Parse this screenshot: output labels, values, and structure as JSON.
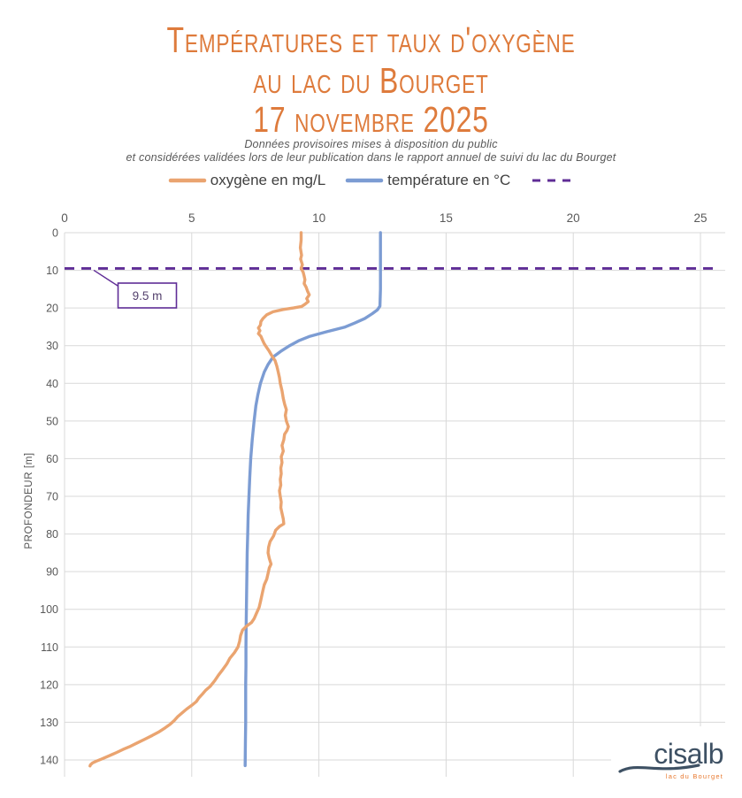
{
  "header": {
    "title_line1": "Températures et taux d'oxygène",
    "title_line2": "au lac du Bourget",
    "title_line3": "17 novembre 2025",
    "subtitle_line1": "Données provisoires mises à disposition du public",
    "subtitle_line2": "et considérées validées lors de leur publication dans le rapport annuel de suivi du lac du Bourget",
    "title_color": "#DE7B3C"
  },
  "legend": {
    "items": [
      {
        "label": "oxygène en mg/L",
        "color": "#EAA470",
        "dashed": false
      },
      {
        "label": "température en °C",
        "color": "#7C9CD3",
        "dashed": false
      },
      {
        "label": "",
        "color": "#5F2D96",
        "dashed": true
      }
    ]
  },
  "logo": {
    "name": "cisalb",
    "tagline": "lac du Bourget",
    "name_color": "#3E5164",
    "tagline_color": "#E8792F"
  },
  "chart_data": {
    "type": "line",
    "title": "Températures et taux d'oxygène au lac du Bourget — 17 novembre 2025",
    "orientation": "vertical-depth-profile",
    "grid": true,
    "grid_color": "#D9D9D9",
    "tick_label_color": "#595959",
    "x_axis": {
      "position": "top",
      "min": 0,
      "max": 25,
      "ticks": [
        0,
        5,
        10,
        15,
        20,
        25
      ]
    },
    "y_axis": {
      "label": "PROFONDEUR [m]",
      "min": 0,
      "max": 140,
      "ticks": [
        0,
        10,
        20,
        30,
        40,
        50,
        60,
        70,
        80,
        90,
        100,
        110,
        120,
        130,
        140
      ]
    },
    "annotation": {
      "label": "9.5 m",
      "depth": 9.5,
      "color": "#5F2D96",
      "text_color": "#54416D",
      "style": "horizontal-dashed-line",
      "line_end_value": 25.5
    },
    "series": [
      {
        "name": "température en °C",
        "color": "#7C9CD3",
        "points": [
          [
            0,
            12.42
          ],
          [
            5,
            12.42
          ],
          [
            10,
            12.42
          ],
          [
            15,
            12.42
          ],
          [
            19.5,
            12.4
          ],
          [
            20.5,
            12.3
          ],
          [
            21.5,
            12.1
          ],
          [
            22.8,
            11.8
          ],
          [
            24,
            11.4
          ],
          [
            25.1,
            11.0
          ],
          [
            26.3,
            10.3
          ],
          [
            27.5,
            9.65
          ],
          [
            28.7,
            9.2
          ],
          [
            30,
            8.85
          ],
          [
            31.5,
            8.5
          ],
          [
            33,
            8.2
          ],
          [
            35,
            8.0
          ],
          [
            37,
            7.85
          ],
          [
            40,
            7.7
          ],
          [
            43,
            7.6
          ],
          [
            46,
            7.52
          ],
          [
            50,
            7.45
          ],
          [
            55,
            7.38
          ],
          [
            60,
            7.32
          ],
          [
            65,
            7.28
          ],
          [
            70,
            7.25
          ],
          [
            75,
            7.22
          ],
          [
            80,
            7.2
          ],
          [
            85,
            7.18
          ],
          [
            90,
            7.17
          ],
          [
            95,
            7.16
          ],
          [
            100,
            7.15
          ],
          [
            105,
            7.14
          ],
          [
            110,
            7.13
          ],
          [
            115,
            7.13
          ],
          [
            120,
            7.12
          ],
          [
            125,
            7.12
          ],
          [
            130,
            7.12
          ],
          [
            135,
            7.11
          ],
          [
            141.5,
            7.1
          ]
        ]
      },
      {
        "name": "oxygène en mg/L",
        "color": "#EAA470",
        "points": [
          [
            0,
            9.3
          ],
          [
            2,
            9.3
          ],
          [
            4,
            9.27
          ],
          [
            6,
            9.32
          ],
          [
            7,
            9.28
          ],
          [
            8.5,
            9.35
          ],
          [
            9.5,
            9.3
          ],
          [
            10.5,
            9.38
          ],
          [
            11.5,
            9.42
          ],
          [
            12.5,
            9.45
          ],
          [
            13.5,
            9.42
          ],
          [
            14.5,
            9.5
          ],
          [
            15.5,
            9.55
          ],
          [
            16.5,
            9.62
          ],
          [
            17.5,
            9.52
          ],
          [
            18.3,
            9.58
          ],
          [
            19,
            9.45
          ],
          [
            19.6,
            9.32
          ],
          [
            20,
            9.0
          ],
          [
            20.4,
            8.6
          ],
          [
            21,
            8.2
          ],
          [
            21.8,
            7.95
          ],
          [
            22.8,
            7.8
          ],
          [
            23.6,
            7.72
          ],
          [
            24.5,
            7.7
          ],
          [
            25.3,
            7.62
          ],
          [
            26,
            7.68
          ],
          [
            26.8,
            7.62
          ],
          [
            27.5,
            7.72
          ],
          [
            28.5,
            7.78
          ],
          [
            29.5,
            7.85
          ],
          [
            30.5,
            7.95
          ],
          [
            31.5,
            8.05
          ],
          [
            32.7,
            8.15
          ],
          [
            34,
            8.28
          ],
          [
            35.5,
            8.35
          ],
          [
            37,
            8.4
          ],
          [
            38.5,
            8.45
          ],
          [
            40,
            8.48
          ],
          [
            42,
            8.55
          ],
          [
            44,
            8.6
          ],
          [
            45.5,
            8.65
          ],
          [
            47,
            8.72
          ],
          [
            48.5,
            8.68
          ],
          [
            50,
            8.72
          ],
          [
            51.5,
            8.8
          ],
          [
            52.5,
            8.75
          ],
          [
            53.5,
            8.65
          ],
          [
            55,
            8.62
          ],
          [
            56.5,
            8.55
          ],
          [
            58,
            8.6
          ],
          [
            59.5,
            8.52
          ],
          [
            61,
            8.55
          ],
          [
            62.5,
            8.5
          ],
          [
            64,
            8.52
          ],
          [
            65.5,
            8.48
          ],
          [
            67,
            8.5
          ],
          [
            68.5,
            8.45
          ],
          [
            70,
            8.48
          ],
          [
            71.5,
            8.52
          ],
          [
            73,
            8.5
          ],
          [
            74.5,
            8.55
          ],
          [
            76,
            8.6
          ],
          [
            77.3,
            8.62
          ],
          [
            78,
            8.45
          ],
          [
            79,
            8.3
          ],
          [
            80.5,
            8.22
          ],
          [
            82,
            8.08
          ],
          [
            83.5,
            8.02
          ],
          [
            85,
            8.0
          ],
          [
            86.5,
            8.05
          ],
          [
            88,
            8.12
          ],
          [
            89,
            8.05
          ],
          [
            90.5,
            8.0
          ],
          [
            92,
            7.95
          ],
          [
            93.5,
            7.85
          ],
          [
            95,
            7.8
          ],
          [
            96.5,
            7.75
          ],
          [
            98,
            7.7
          ],
          [
            99.5,
            7.65
          ],
          [
            101,
            7.55
          ],
          [
            102.5,
            7.45
          ],
          [
            103.5,
            7.35
          ],
          [
            104.5,
            7.15
          ],
          [
            105.5,
            7.0
          ],
          [
            107,
            6.92
          ],
          [
            108.5,
            6.88
          ],
          [
            110,
            6.82
          ],
          [
            111.5,
            6.68
          ],
          [
            113,
            6.5
          ],
          [
            114.5,
            6.38
          ],
          [
            116,
            6.22
          ],
          [
            117.5,
            6.05
          ],
          [
            119,
            5.9
          ],
          [
            120.5,
            5.72
          ],
          [
            121.5,
            5.55
          ],
          [
            122.5,
            5.42
          ],
          [
            123.5,
            5.28
          ],
          [
            124.5,
            5.18
          ],
          [
            125.5,
            5.0
          ],
          [
            126.5,
            4.8
          ],
          [
            127.5,
            4.62
          ],
          [
            128.5,
            4.45
          ],
          [
            129.5,
            4.32
          ],
          [
            130.5,
            4.15
          ],
          [
            131.5,
            3.95
          ],
          [
            132.5,
            3.72
          ],
          [
            133.5,
            3.45
          ],
          [
            134.5,
            3.15
          ],
          [
            135.5,
            2.85
          ],
          [
            136.5,
            2.55
          ],
          [
            137.2,
            2.3
          ],
          [
            138,
            2.05
          ],
          [
            139,
            1.72
          ],
          [
            139.8,
            1.45
          ],
          [
            140.3,
            1.25
          ],
          [
            140.8,
            1.1
          ],
          [
            141.3,
            1.02
          ],
          [
            141.6,
            1.0
          ]
        ]
      }
    ]
  }
}
